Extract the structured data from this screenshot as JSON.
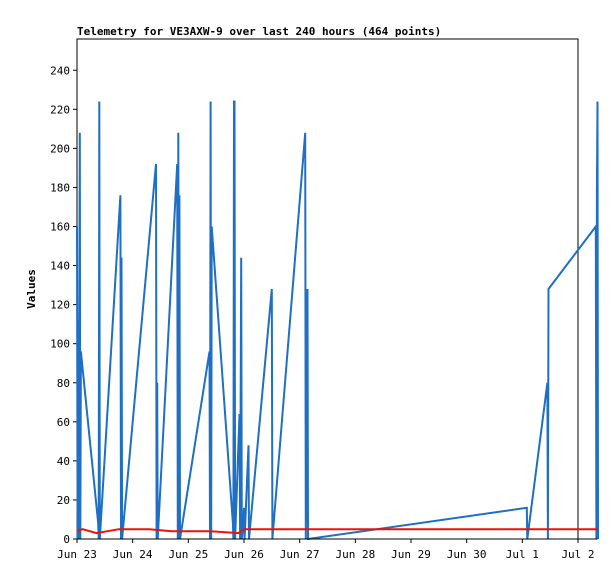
{
  "chart_data": {
    "type": "line",
    "title": "Telemetry for VE3AXW-9 over last 240 hours (464 points)",
    "xlabel": "",
    "ylabel": "Values",
    "ylim": [
      0,
      256
    ],
    "yticks": [
      0,
      20,
      40,
      60,
      80,
      100,
      120,
      140,
      160,
      180,
      200,
      220,
      240
    ],
    "xlim": [
      "Jun 23",
      "Jul 2"
    ],
    "xticks": [
      {
        "label": "Jun 23",
        "day": 0
      },
      {
        "label": "Jun 24",
        "day": 1
      },
      {
        "label": "Jun 25",
        "day": 2
      },
      {
        "label": "Jun 26",
        "day": 3
      },
      {
        "label": "Jun 27",
        "day": 4
      },
      {
        "label": "Jun 28",
        "day": 5
      },
      {
        "label": "Jun 29",
        "day": 6
      },
      {
        "label": "Jun 30",
        "day": 7
      },
      {
        "label": "Jul 1",
        "day": 8
      },
      {
        "label": "Jul 2",
        "day": 9
      }
    ],
    "grid": false,
    "series": [
      {
        "color": "#1f6fc5",
        "points": [
          [
            0.0,
            160
          ],
          [
            0.01,
            0
          ],
          [
            0.02,
            112
          ],
          [
            0.03,
            0
          ],
          [
            0.05,
            208
          ],
          [
            0.06,
            0
          ],
          [
            0.07,
            96
          ],
          [
            0.38,
            8
          ],
          [
            0.39,
            0
          ],
          [
            0.4,
            224
          ],
          [
            0.41,
            0
          ],
          [
            0.78,
            176
          ],
          [
            0.79,
            0
          ],
          [
            0.8,
            144
          ],
          [
            0.81,
            0
          ],
          [
            1.42,
            192
          ],
          [
            1.43,
            0
          ],
          [
            1.44,
            80
          ],
          [
            1.45,
            0
          ],
          [
            1.8,
            192
          ],
          [
            1.81,
            0
          ],
          [
            1.82,
            208
          ],
          [
            1.83,
            0
          ],
          [
            1.84,
            176
          ],
          [
            1.85,
            0
          ],
          [
            2.38,
            96
          ],
          [
            2.39,
            0
          ],
          [
            2.4,
            224
          ],
          [
            2.41,
            0
          ],
          [
            2.42,
            160
          ],
          [
            2.8,
            8
          ],
          [
            2.81,
            0
          ],
          [
            2.82,
            224
          ],
          [
            2.83,
            224
          ],
          [
            2.84,
            0
          ],
          [
            2.92,
            64
          ],
          [
            2.93,
            0
          ],
          [
            2.95,
            144
          ],
          [
            2.96,
            0
          ],
          [
            2.99,
            8
          ],
          [
            3.0,
            16
          ],
          [
            3.01,
            0
          ],
          [
            3.08,
            48
          ],
          [
            3.09,
            0
          ],
          [
            3.5,
            128
          ],
          [
            3.51,
            0
          ],
          [
            4.1,
            208
          ],
          [
            4.11,
            0
          ],
          [
            4.14,
            128
          ],
          [
            4.15,
            0
          ],
          [
            8.08,
            16
          ],
          [
            8.09,
            0
          ],
          [
            8.45,
            80
          ],
          [
            8.46,
            0
          ],
          [
            8.47,
            128
          ],
          [
            9.32,
            160
          ],
          [
            9.33,
            0
          ],
          [
            9.34,
            176
          ],
          [
            9.35,
            224
          ],
          [
            9.36,
            0
          ]
        ]
      },
      {
        "color": "#e8140c",
        "points": [
          [
            0.0,
            4
          ],
          [
            0.1,
            5
          ],
          [
            0.35,
            3
          ],
          [
            0.55,
            4
          ],
          [
            0.75,
            5
          ],
          [
            1.3,
            5
          ],
          [
            1.7,
            4
          ],
          [
            2.4,
            4
          ],
          [
            2.9,
            3
          ],
          [
            3.0,
            5
          ],
          [
            4.0,
            5
          ],
          [
            9.35,
            5
          ]
        ]
      },
      {
        "color": "#000000",
        "points": [
          [
            0.0,
            0
          ],
          [
            9.35,
            0
          ]
        ]
      }
    ]
  }
}
